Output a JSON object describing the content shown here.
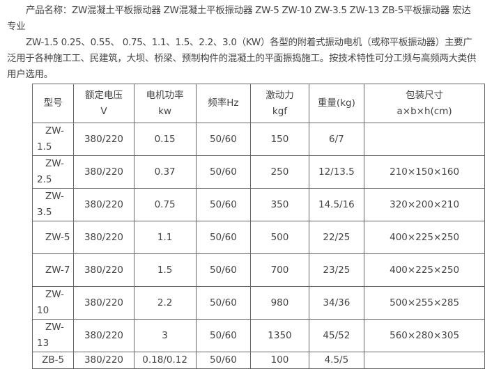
{
  "paragraphs": [
    "产品名称：ZW混凝土平板振动器 ZW混凝土平板振动器 ZW-5 ZW-10 ZW-3.5 ZW-13 ZB-5平板振动器 宏达专业",
    "ZW-1.5 0.25、0.55、 0.75、1.1、1.5、2.2、3.0（KW）各型的附着式振动电机（或称平板振动器）主要广泛用于各种施工工、民建筑，大坝、桥梁、预制构件的混凝土的平面振捣施工。按技术特性可分工频与高频两大类供用户选用。"
  ],
  "table": {
    "headers": [
      [
        "型号",
        ""
      ],
      [
        "额定电压",
        "V"
      ],
      [
        "电机功率",
        "kw"
      ],
      [
        "频率Hz",
        ""
      ],
      [
        "激动力",
        "kgf"
      ],
      [
        "重量(kg)",
        ""
      ],
      [
        "包装尺寸",
        "a×b×h(cm)"
      ]
    ],
    "rows": [
      [
        "ZW-1.5",
        "380/220",
        "0.15",
        "50/60",
        "150",
        "6/7",
        ""
      ],
      [
        "ZW-2.5",
        "380/220",
        "0.37",
        "50/60",
        "250",
        "12/13.5",
        "210×150×160"
      ],
      [
        "ZW-3.5",
        "380/220",
        "0.75",
        "50/60",
        "350",
        "14.5/16",
        "320×200×210"
      ],
      [
        "ZW-5",
        "380/220",
        "1.1",
        "50/60",
        "500",
        "22/25",
        "400×225×250"
      ],
      [
        "ZW-7",
        "380/220",
        "1.5",
        "50/60",
        "700",
        "23/25",
        "400×225×250"
      ],
      [
        "ZW-10",
        "380/220",
        "2.2",
        "50/60",
        "980",
        "34/36",
        "500×255×285"
      ],
      [
        "ZW-13",
        "380/220",
        "3",
        "50/60",
        "1350",
        "45/52",
        "560×280×305"
      ],
      [
        "ZB-5",
        "380/220",
        "0.18/0.12",
        "50/60",
        "100",
        "4.5/5",
        ""
      ]
    ]
  }
}
